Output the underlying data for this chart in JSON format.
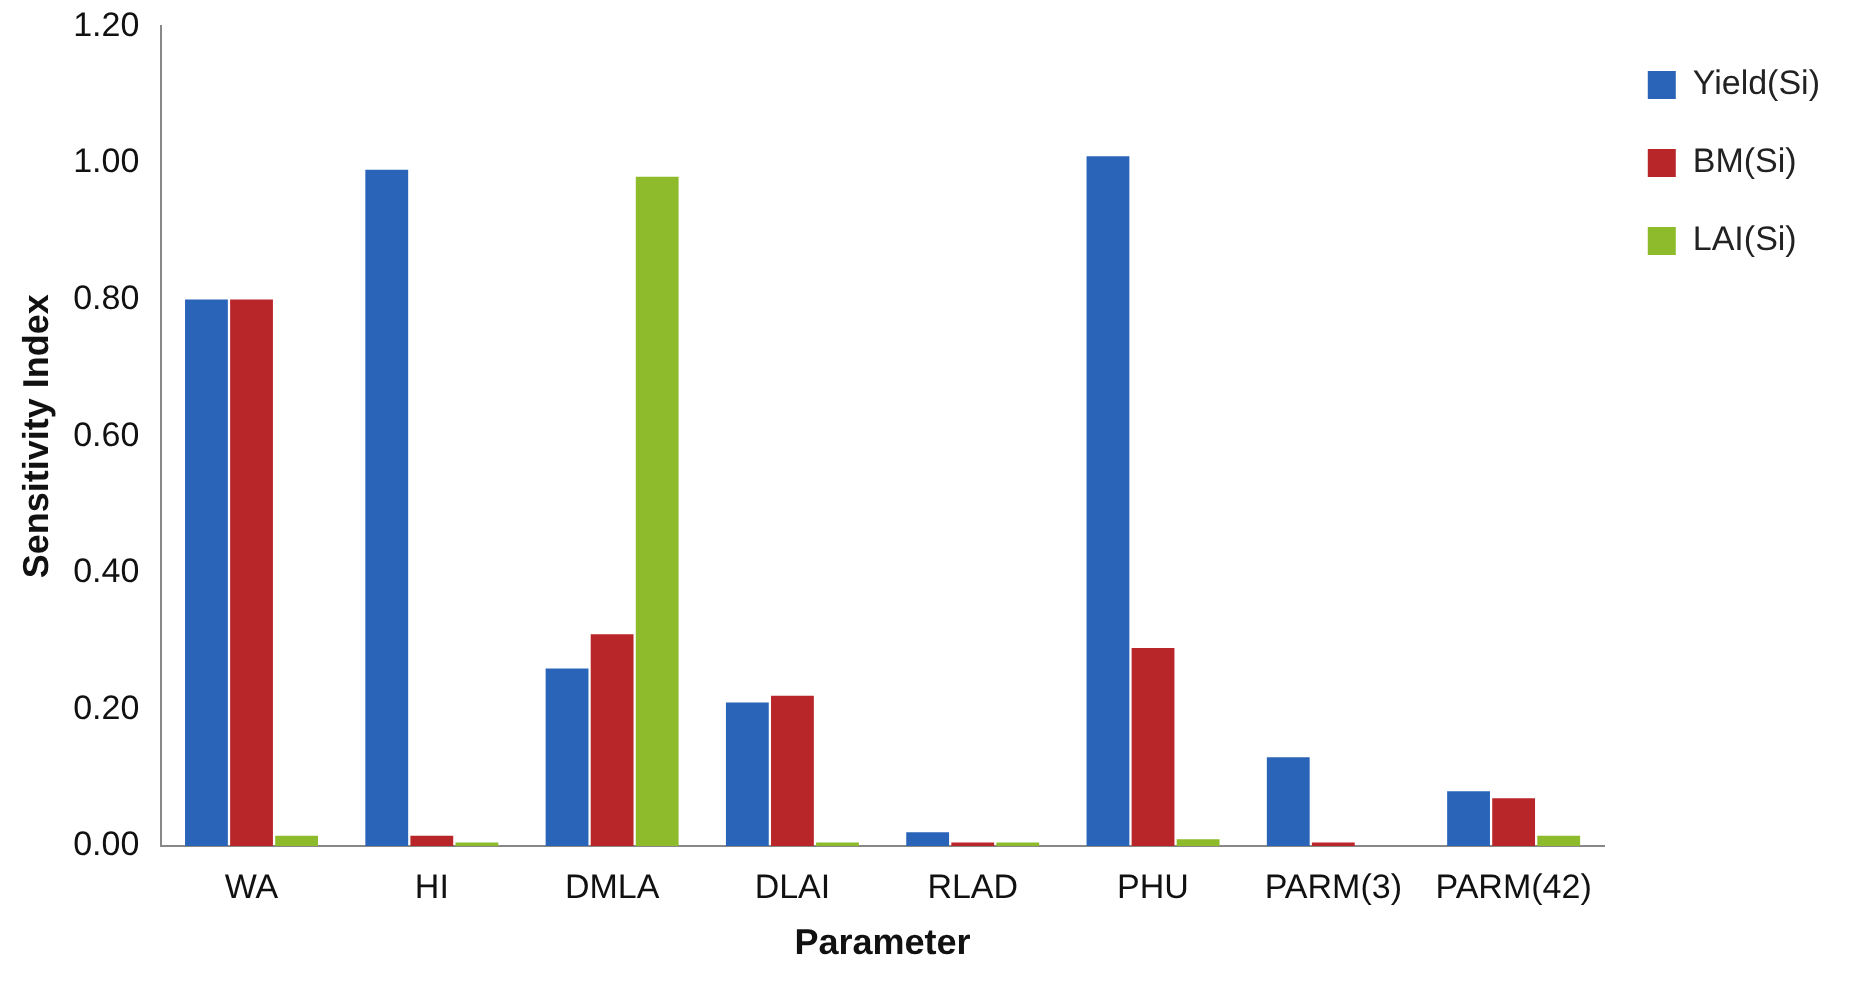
{
  "chart_data": {
    "type": "bar",
    "xlabel": "Parameter",
    "ylabel": "Sensitivity Index",
    "categories": [
      "WA",
      "HI",
      "DMLA",
      "DLAI",
      "RLAD",
      "PHU",
      "PARM(3)",
      "PARM(42)"
    ],
    "series": [
      {
        "name": "Yield(Si)",
        "color": "#2a64b8",
        "values": [
          0.8,
          0.99,
          0.26,
          0.21,
          0.02,
          1.01,
          0.13,
          0.08
        ]
      },
      {
        "name": "BM(Si)",
        "color": "#b9262a",
        "values": [
          0.8,
          0.015,
          0.31,
          0.22,
          0.005,
          0.29,
          0.005,
          0.07
        ]
      },
      {
        "name": "LAI(Si)",
        "color": "#8dbb2c",
        "values": [
          0.015,
          0.005,
          0.98,
          0.005,
          0.005,
          0.01,
          null,
          0.015
        ]
      }
    ],
    "ylim": [
      0,
      1.2
    ],
    "yticks": [
      {
        "value": 0,
        "label": "0.00"
      },
      {
        "value": 0.2,
        "label": "0.20"
      },
      {
        "value": 0.4,
        "label": "0.40"
      },
      {
        "value": 0.6,
        "label": "0.60"
      },
      {
        "value": 0.8,
        "label": "0.80"
      },
      {
        "value": 1.0,
        "label": "1.00"
      },
      {
        "value": 1.2,
        "label": "1.20"
      }
    ],
    "grid": false,
    "legend": "top right"
  }
}
